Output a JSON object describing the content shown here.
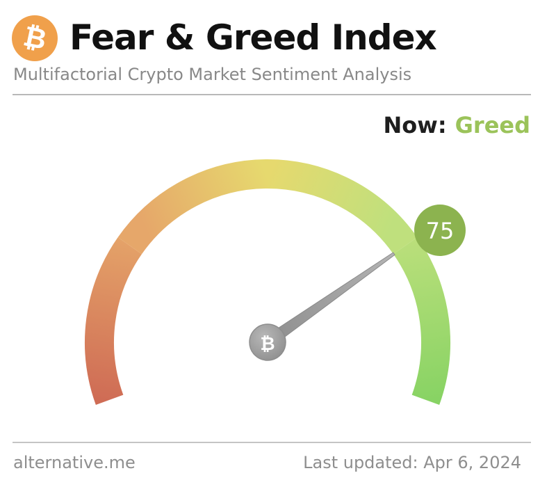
{
  "header": {
    "logo_glyph": "₿",
    "title": "Fear & Greed Index",
    "subtitle": "Multifactorial Crypto Market Sentiment Analysis"
  },
  "status": {
    "now_label": "Now:",
    "now_value": "Greed"
  },
  "gauge": {
    "value": 75,
    "value_text": "75",
    "min": 0,
    "max": 100,
    "center_glyph": "₿"
  },
  "footer": {
    "source": "alternative.me",
    "last_updated": "Last updated: Apr 6, 2024"
  },
  "colors": {
    "logo_orange": "#f0a04b",
    "greed_green": "#9bc35a",
    "badge_green": "#8cb34f",
    "fear_red": "#cf6c55",
    "neutral_yellow": "#e6d96e",
    "extreme_greed": "#88d364"
  }
}
